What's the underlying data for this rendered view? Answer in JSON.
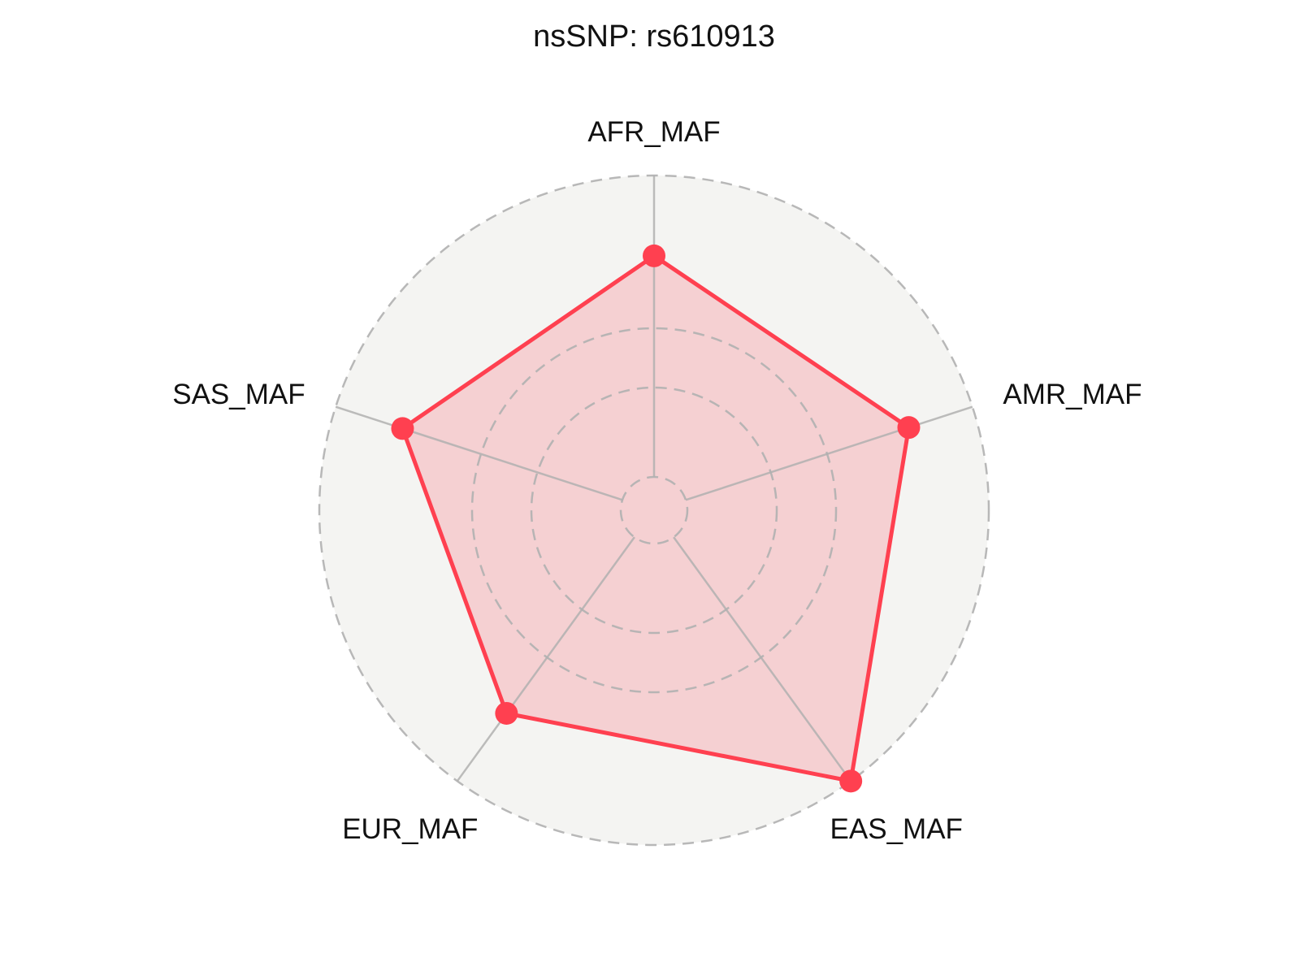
{
  "chart_data": {
    "type": "radar",
    "title": "nsSNP: rs610913",
    "categories": [
      "AFR_MAF",
      "AMR_MAF",
      "EAS_MAF",
      "EUR_MAF",
      "SAS_MAF"
    ],
    "series": [
      {
        "values": [
          0.76,
          0.8,
          1.0,
          0.75,
          0.79
        ]
      }
    ],
    "radial_range": [
      0,
      1
    ],
    "radial_tick_labels_shown": false,
    "grid": true,
    "legend": "none",
    "colors": {
      "series_line": "#ff4050",
      "series_fill": "#f5d0d2",
      "plot_background": "#f4f4f2",
      "grid": "#b0b0b0"
    }
  }
}
